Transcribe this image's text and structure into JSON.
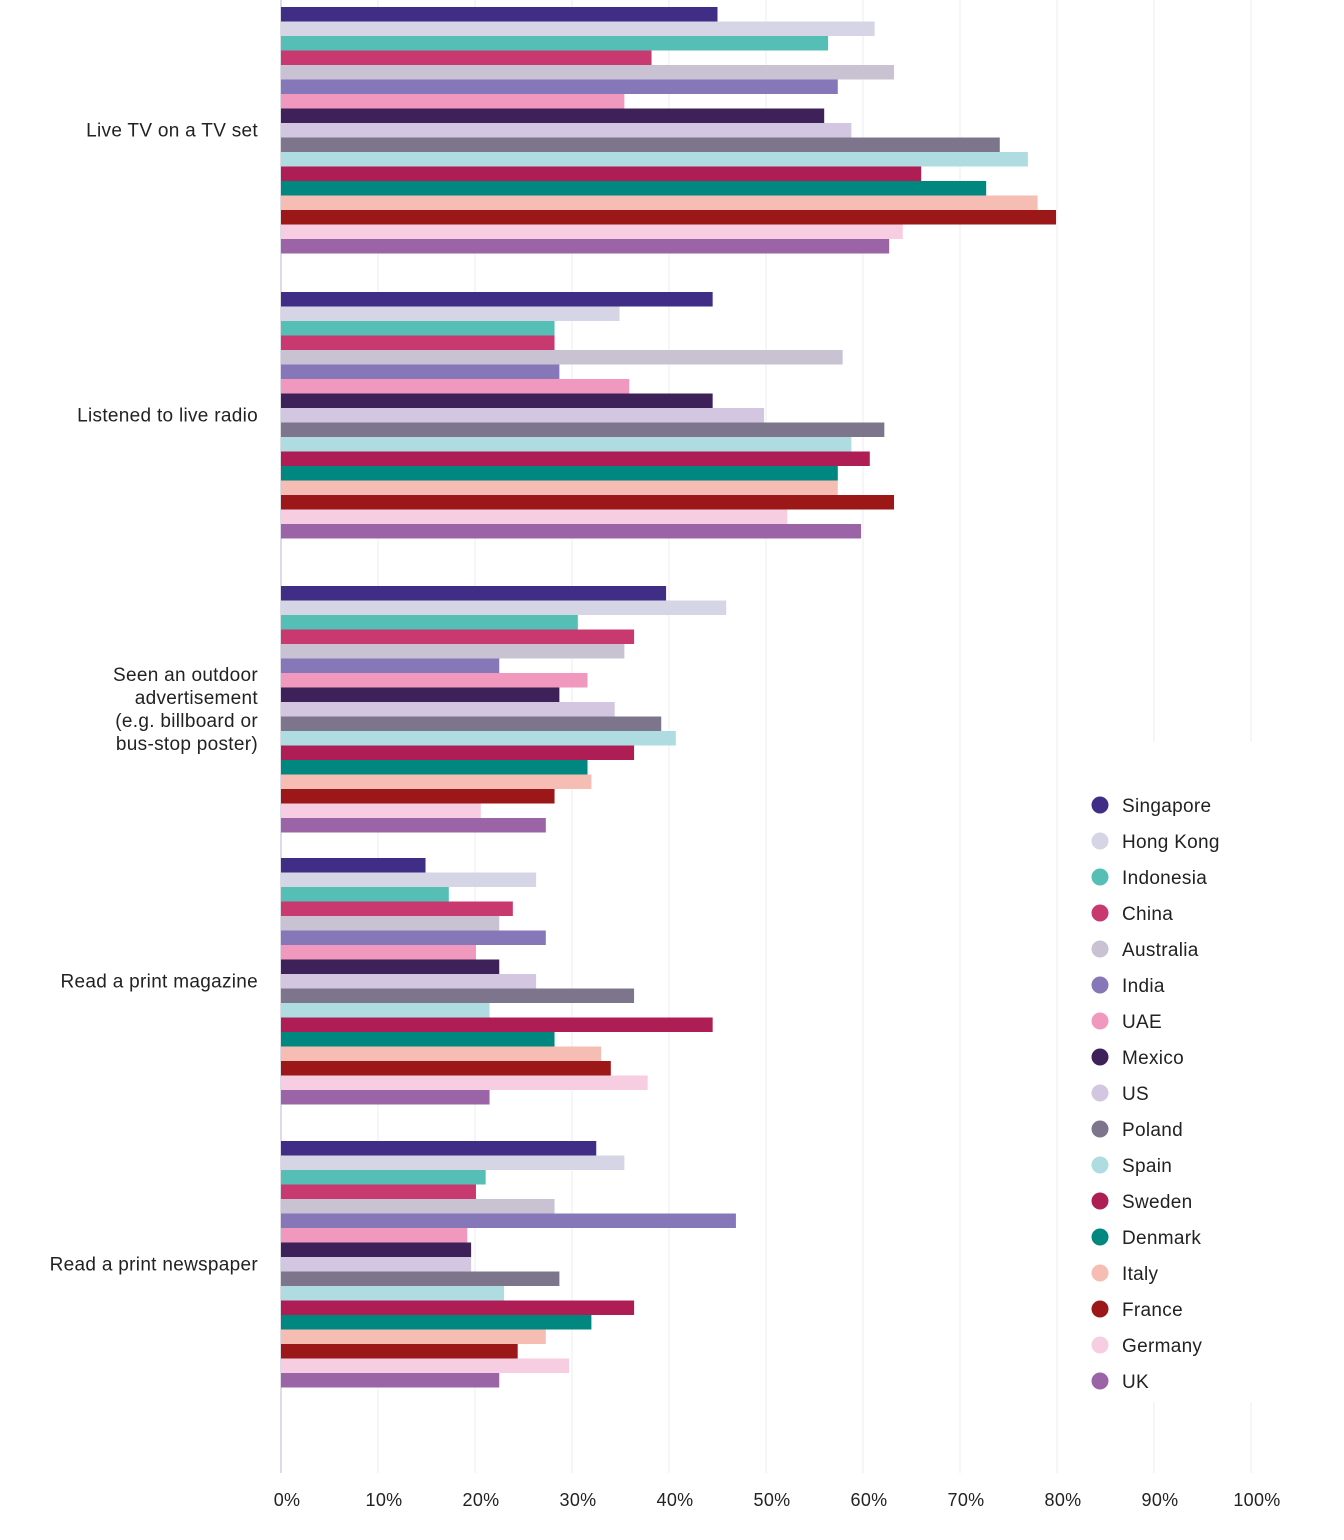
{
  "chart_data": {
    "type": "bar",
    "orientation": "horizontal",
    "title": "",
    "xlabel": "",
    "ylabel": "",
    "xlim": [
      0,
      100
    ],
    "x_ticks": [
      "0%",
      "10%",
      "20%",
      "30%",
      "40%",
      "50%",
      "60%",
      "70%",
      "80%",
      "90%",
      "100%"
    ],
    "grid": "vertical",
    "legend_position": "bottom-right",
    "categories": [
      [
        "Live TV on a TV set"
      ],
      [
        "Listened to live radio"
      ],
      [
        "Seen an outdoor",
        "advertisement",
        "(e.g. billboard or",
        "bus-stop poster)"
      ],
      [
        "Read a print magazine"
      ],
      [
        "Read a print newspaper"
      ]
    ],
    "series": [
      {
        "name": "Singapore",
        "color": "#3F2D86",
        "values": [
          45,
          44.5,
          39.7,
          14.9,
          32.5
        ]
      },
      {
        "name": "Hong Kong",
        "color": "#D6D5E6",
        "values": [
          61.2,
          34.9,
          45.9,
          26.3,
          35.4
        ]
      },
      {
        "name": "Indonesia",
        "color": "#56BFB5",
        "values": [
          56.4,
          28.2,
          30.6,
          17.3,
          21.1
        ]
      },
      {
        "name": "China",
        "color": "#C83A6F",
        "values": [
          38.2,
          28.2,
          36.4,
          23.9,
          20.1
        ]
      },
      {
        "name": "Australia",
        "color": "#C8C2D2",
        "values": [
          63.2,
          57.9,
          35.4,
          22.5,
          28.2
        ]
      },
      {
        "name": "India",
        "color": "#8677B8",
        "values": [
          57.4,
          28.7,
          22.5,
          27.3,
          46.9
        ]
      },
      {
        "name": "UAE",
        "color": "#F198BF",
        "values": [
          35.4,
          35.9,
          31.6,
          20.1,
          19.2
        ]
      },
      {
        "name": "Mexico",
        "color": "#3F2159",
        "values": [
          56,
          44.5,
          28.7,
          22.5,
          19.6
        ]
      },
      {
        "name": "US",
        "color": "#D3C6E1",
        "values": [
          58.8,
          49.8,
          34.4,
          26.3,
          19.6
        ]
      },
      {
        "name": "Poland",
        "color": "#7D758C",
        "values": [
          74.1,
          62.2,
          39.2,
          36.4,
          28.7
        ]
      },
      {
        "name": "Spain",
        "color": "#AEDCE0",
        "values": [
          77,
          58.8,
          40.7,
          21.5,
          23
        ]
      },
      {
        "name": "Sweden",
        "color": "#AE1E55",
        "values": [
          66,
          60.7,
          36.4,
          44.5,
          36.4
        ]
      },
      {
        "name": "Denmark",
        "color": "#008780",
        "values": [
          72.7,
          57.4,
          31.6,
          28.2,
          32
        ]
      },
      {
        "name": "Italy",
        "color": "#F6BDB5",
        "values": [
          78,
          57.4,
          32,
          33,
          27.3
        ]
      },
      {
        "name": "France",
        "color": "#9C1717",
        "values": [
          79.9,
          63.2,
          28.2,
          34,
          24.4
        ]
      },
      {
        "name": "Germany",
        "color": "#F7CDE2",
        "values": [
          64.1,
          52.2,
          20.6,
          37.8,
          29.7
        ]
      },
      {
        "name": "UK",
        "color": "#9A64A7",
        "values": [
          62.7,
          59.8,
          27.3,
          21.5,
          22.5
        ]
      }
    ]
  }
}
